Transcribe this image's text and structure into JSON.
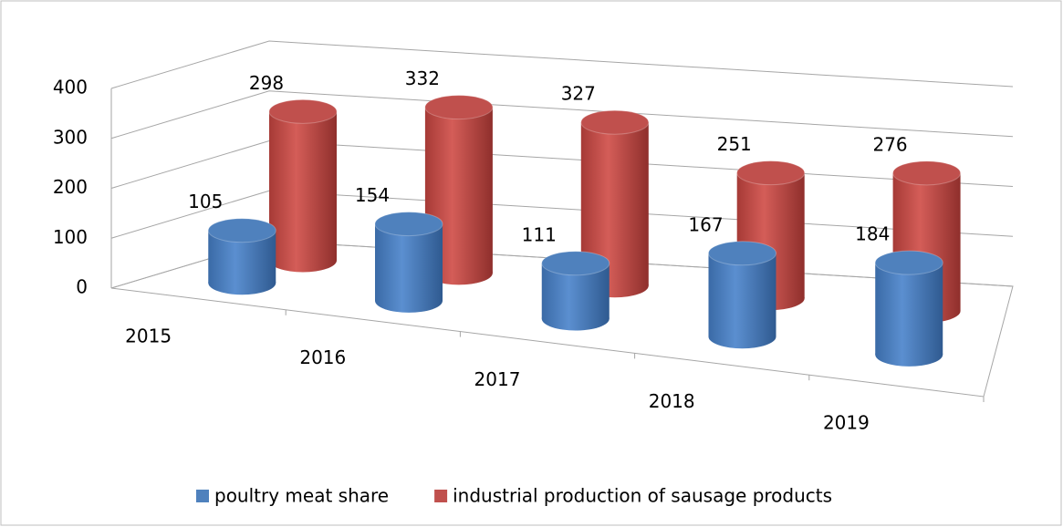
{
  "chart_data": {
    "type": "bar3d",
    "categories": [
      "2015",
      "2016",
      "2017",
      "2018",
      "2019"
    ],
    "series": [
      {
        "name": "poultry meat share",
        "color": "#4f81bd",
        "values": [
          105,
          154,
          111,
          167,
          184
        ]
      },
      {
        "name": "industrial production of sausage products",
        "color": "#c0504d",
        "values": [
          298,
          332,
          327,
          251,
          276
        ]
      }
    ],
    "ylim": [
      0,
      400
    ],
    "yticks": [
      0,
      100,
      200,
      300,
      400
    ],
    "grid": true,
    "legend": "bottom"
  }
}
